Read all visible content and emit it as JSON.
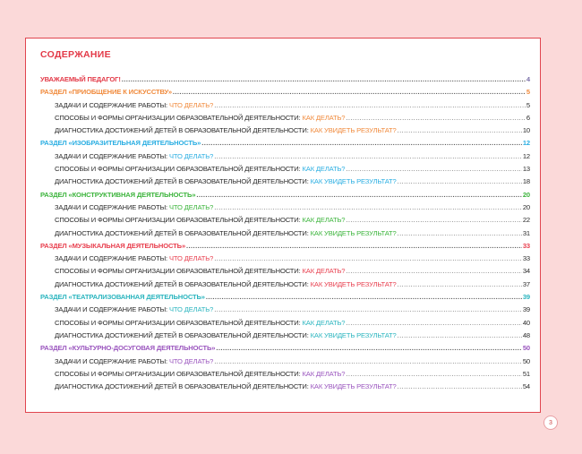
{
  "title": "СОДЕРЖАНИЕ",
  "page_number": "3",
  "intro": {
    "label": "УВАЖАЕМЫЙ ПЕДАГОГ!",
    "page": "4",
    "color": "#e33a48",
    "page_color": "#7a6fa8"
  },
  "sections": [
    {
      "label": "РАЗДЕЛ «ПРИОБЩЕНИЕ К ИСКУССТВУ»",
      "page": "5",
      "color": "#f08a3c",
      "items": [
        {
          "text": "ЗАДАЧИ И СОДЕРЖАНИЕ РАБОТЫ: ",
          "accent": "ЧТО ДЕЛАТЬ?",
          "page": "5"
        },
        {
          "text": "СПОСОБЫ И ФОРМЫ ОРГАНИЗАЦИИ ОБРАЗОВАТЕЛЬНОЙ ДЕЯТЕЛЬНОСТИ: ",
          "accent": "КАК ДЕЛАТЬ?",
          "page": "6"
        },
        {
          "text": "ДИАГНОСТИКА ДОСТИЖЕНИЙ ДЕТЕЙ В ОБРАЗОВАТЕЛЬНОЙ ДЕЯТЕЛЬНОСТИ: ",
          "accent": "КАК УВИДЕТЬ РЕЗУЛЬТАТ?",
          "page": "10"
        }
      ]
    },
    {
      "label": "РАЗДЕЛ «ИЗОБРАЗИТЕЛЬНАЯ ДЕЯТЕЛЬНОСТЬ»",
      "page": "12",
      "color": "#2aaee2",
      "items": [
        {
          "text": "ЗАДАЧИ И СОДЕРЖАНИЕ РАБОТЫ: ",
          "accent": "ЧТО ДЕЛАТЬ?",
          "page": "12"
        },
        {
          "text": "СПОСОБЫ И ФОРМЫ ОРГАНИЗАЦИИ ОБРАЗОВАТЕЛЬНОЙ ДЕЯТЕЛЬНОСТИ: ",
          "accent": "КАК ДЕЛАТЬ?",
          "page": "13"
        },
        {
          "text": "ДИАГНОСТИКА ДОСТИЖЕНИЙ ДЕТЕЙ В ОБРАЗОВАТЕЛЬНОЙ ДЕЯТЕЛЬНОСТИ: ",
          "accent": "КАК УВИДЕТЬ РЕЗУЛЬТАТ?",
          "page": "18"
        }
      ]
    },
    {
      "label": "РАЗДЕЛ «КОНСТРУКТИВНАЯ ДЕЯТЕЛЬНОСТЬ»",
      "page": "20",
      "color": "#3cb43c",
      "items": [
        {
          "text": "ЗАДАЧИ И СОДЕРЖАНИЕ РАБОТЫ: ",
          "accent": "ЧТО ДЕЛАТЬ?",
          "page": "20"
        },
        {
          "text": "СПОСОБЫ И ФОРМЫ ОРГАНИЗАЦИИ ОБРАЗОВАТЕЛЬНОЙ ДЕЯТЕЛЬНОСТИ: ",
          "accent": "КАК ДЕЛАТЬ?",
          "page": "22"
        },
        {
          "text": "ДИАГНОСТИКА ДОСТИЖЕНИЙ ДЕТЕЙ В ОБРАЗОВАТЕЛЬНОЙ ДЕЯТЕЛЬНОСТИ: ",
          "accent": "КАК УВИДЕТЬ РЕЗУЛЬТАТ?",
          "page": "31"
        }
      ]
    },
    {
      "label": "РАЗДЕЛ «МУЗЫКАЛЬНАЯ ДЕЯТЕЛЬНОСТЬ»",
      "page": "33",
      "color": "#e8404f",
      "items": [
        {
          "text": "ЗАДАЧИ И СОДЕРЖАНИЕ РАБОТЫ: ",
          "accent": "ЧТО ДЕЛАТЬ?",
          "page": "33"
        },
        {
          "text": "СПОСОБЫ И ФОРМЫ ОРГАНИЗАЦИИ ОБРАЗОВАТЕЛЬНОЙ ДЕЯТЕЛЬНОСТИ: ",
          "accent": "КАК ДЕЛАТЬ?",
          "page": "34"
        },
        {
          "text": "ДИАГНОСТИКА ДОСТИЖЕНИЙ ДЕТЕЙ В ОБРАЗОВАТЕЛЬНОЙ ДЕЯТЕЛЬНОСТИ: ",
          "accent": "КАК УВИДЕТЬ РЕЗУЛЬТАТ?",
          "page": "37"
        }
      ]
    },
    {
      "label": "РАЗДЕЛ «ТЕАТРАЛИЗОВАННАЯ ДЕЯТЕЛЬНОСТЬ»",
      "page": "39",
      "color": "#2bb5bf",
      "items": [
        {
          "text": "ЗАДАЧИ И СОДЕРЖАНИЕ РАБОТЫ: ",
          "accent": "ЧТО ДЕЛАТЬ?",
          "page": "39"
        },
        {
          "text": "СПОСОБЫ И ФОРМЫ ОРГАНИЗАЦИИ ОБРАЗОВАТЕЛЬНОЙ ДЕЯТЕЛЬНОСТИ: ",
          "accent": "КАК ДЕЛАТЬ?",
          "page": "40"
        },
        {
          "text": "ДИАГНОСТИКА ДОСТИЖЕНИЙ ДЕТЕЙ В ОБРАЗОВАТЕЛЬНОЙ ДЕЯТЕЛЬНОСТИ: ",
          "accent": "КАК УВИДЕТЬ РЕЗУЛЬТАТ?",
          "page": "48"
        }
      ]
    },
    {
      "label": "РАЗДЕЛ «КУЛЬТУРНО-ДОСУГОВАЯ ДЕЯТЕЛЬНОСТЬ»",
      "page": "50",
      "color": "#9a55be",
      "items": [
        {
          "text": "ЗАДАЧИ И СОДЕРЖАНИЕ РАБОТЫ: ",
          "accent": "ЧТО ДЕЛАТЬ?",
          "page": "50"
        },
        {
          "text": "СПОСОБЫ И ФОРМЫ ОРГАНИЗАЦИИ ОБРАЗОВАТЕЛЬНОЙ ДЕЯТЕЛЬНОСТИ: ",
          "accent": "КАК ДЕЛАТЬ?",
          "page": "51"
        },
        {
          "text": "ДИАГНОСТИКА ДОСТИЖЕНИЙ ДЕТЕЙ В ОБРАЗОВАТЕЛЬНОЙ ДЕЯТЕЛЬНОСТИ: ",
          "accent": "КАК УВИДЕТЬ РЕЗУЛЬТАТ?",
          "page": "54"
        }
      ]
    }
  ]
}
